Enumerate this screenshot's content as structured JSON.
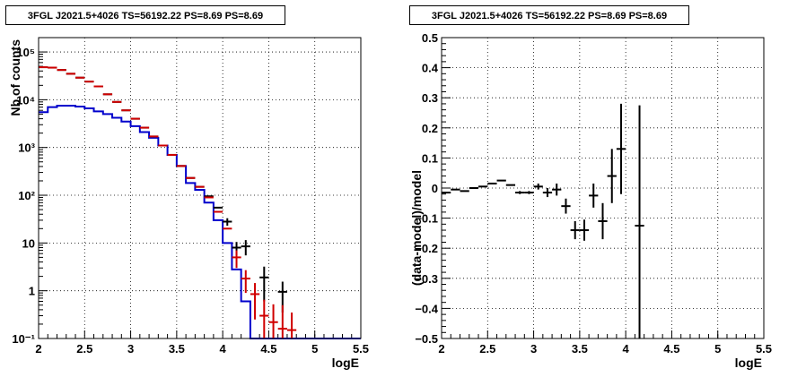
{
  "colors": {
    "data": "#000000",
    "model": "#d00000",
    "source": "#0000cc",
    "grid": "#000000"
  },
  "chart_data": [
    {
      "type": "line",
      "title": "3FGL J2021.5+4026 TS=56192.22 PS=8.69 PS=8.69",
      "xlabel": "logE",
      "ylabel": "Nb of counts",
      "yscale": "log",
      "xlim": [
        2,
        5.5
      ],
      "ylim": [
        0.1,
        200000
      ],
      "grid": true,
      "xticks": [
        "2",
        "2.5",
        "3",
        "3.5",
        "4",
        "4.5",
        "5",
        "5.5"
      ],
      "yticks": [
        {
          "v": 0.1,
          "label": "10⁻¹"
        },
        {
          "v": 1,
          "label": "1"
        },
        {
          "v": 10,
          "label": "10"
        },
        {
          "v": 100,
          "label": "10²"
        },
        {
          "v": 1000,
          "label": "10³"
        },
        {
          "v": 10000,
          "label": "10⁴"
        },
        {
          "v": 100000,
          "label": "10⁵"
        }
      ],
      "bin_edges": [
        2.0,
        2.1,
        2.2,
        2.3,
        2.4,
        2.5,
        2.6,
        2.7,
        2.8,
        2.9,
        3.0,
        3.1,
        3.2,
        3.3,
        3.4,
        3.5,
        3.6,
        3.7,
        3.8,
        3.9,
        4.0,
        4.1,
        4.2,
        4.3,
        4.4,
        4.5,
        4.6,
        4.7,
        4.8,
        4.9,
        5.0,
        5.1,
        5.2,
        5.3,
        5.4,
        5.5
      ],
      "series": [
        {
          "kind": "points",
          "color": "#000000",
          "x": [
            2.05,
            2.15,
            2.25,
            2.35,
            2.45,
            2.55,
            2.65,
            2.75,
            2.85,
            2.95,
            3.05,
            3.15,
            3.25,
            3.35,
            3.45,
            3.55,
            3.65,
            3.75,
            3.85,
            3.95,
            4.05,
            4.15,
            4.25,
            4.35,
            4.45,
            4.55,
            4.65
          ],
          "y": [
            48000,
            47000,
            42000,
            35000,
            29000,
            24000,
            19000,
            13000,
            9000,
            6000,
            4000,
            2600,
            1700,
            1100,
            700,
            410,
            230,
            150,
            95,
            55,
            28,
            8,
            8.5,
            0.1,
            1.9,
            0.1,
            0.95
          ],
          "err_low": [
            0,
            0,
            0,
            0,
            0,
            0,
            0,
            0,
            0,
            0,
            0,
            0,
            0,
            0,
            0,
            0,
            0,
            0,
            0,
            0,
            5,
            2.5,
            3,
            0,
            1.3,
            0,
            0.6
          ],
          "err_high": [
            0,
            0,
            0,
            0,
            0,
            0,
            0,
            0,
            0,
            0,
            0,
            0,
            0,
            0,
            0,
            0,
            0,
            0,
            0,
            0,
            5,
            2.5,
            3,
            0,
            1.3,
            0,
            0.6
          ]
        },
        {
          "kind": "points",
          "color": "#d00000",
          "x": [
            2.05,
            2.15,
            2.25,
            2.35,
            2.45,
            2.55,
            2.65,
            2.75,
            2.85,
            2.95,
            3.05,
            3.15,
            3.25,
            3.35,
            3.45,
            3.55,
            3.65,
            3.75,
            3.85,
            3.95,
            4.05,
            4.15,
            4.25,
            4.35,
            4.45,
            4.55,
            4.65,
            4.75
          ],
          "y": [
            48000,
            47000,
            42000,
            35000,
            29000,
            24000,
            19000,
            13000,
            9000,
            6000,
            4000,
            2600,
            1700,
            1100,
            700,
            410,
            230,
            150,
            90,
            45,
            20,
            5,
            1.8,
            0.85,
            0.3,
            0.22,
            0.16,
            0.15
          ],
          "err_low": [
            0,
            0,
            0,
            0,
            0,
            0,
            0,
            0,
            0,
            0,
            0,
            0,
            0,
            0,
            0,
            0,
            0,
            0,
            0,
            0,
            0,
            2,
            0.9,
            0.6,
            0.2,
            0.12,
            0.06,
            0.05
          ],
          "err_high": [
            0,
            0,
            0,
            0,
            0,
            0,
            0,
            0,
            0,
            0,
            0,
            0,
            0,
            0,
            0,
            0,
            0,
            0,
            0,
            0,
            0,
            2,
            0.9,
            0.6,
            0.35,
            0.3,
            0.34,
            0.2
          ]
        },
        {
          "kind": "step",
          "color": "#0000cc",
          "values": [
            5500,
            7000,
            7500,
            7500,
            7200,
            6600,
            5700,
            5000,
            4200,
            3500,
            2800,
            2100,
            1600,
            1100,
            700,
            410,
            180,
            130,
            70,
            30,
            10,
            2.8,
            0.6,
            0.1,
            0.1,
            0.1,
            0.1,
            0.1,
            0.1,
            0.1,
            0.1,
            0.1,
            0.1,
            0.1,
            0.1
          ]
        }
      ]
    },
    {
      "type": "scatter",
      "title": "3FGL J2021.5+4026 TS=56192.22 PS=8.69 PS=8.69",
      "xlabel": "logE",
      "ylabel": "(data-model)/model",
      "xlim": [
        2,
        5.5
      ],
      "ylim": [
        -0.5,
        0.5
      ],
      "grid": true,
      "xticks": [
        "2",
        "2.5",
        "3",
        "3.5",
        "4",
        "4.5",
        "5",
        "5.5"
      ],
      "yticks": [
        "−0.5",
        "−0.4",
        "−0.3",
        "−0.2",
        "−0.1",
        "0",
        "0.1",
        "0.2",
        "0.3",
        "0.4",
        "0.5"
      ],
      "series": [
        {
          "x": [
            2.05,
            2.15,
            2.25,
            2.35,
            2.45,
            2.55,
            2.65,
            2.75,
            2.85,
            2.95,
            3.05,
            3.15,
            3.25,
            3.35,
            3.45,
            3.55,
            3.65,
            3.75,
            3.85,
            3.95,
            4.15
          ],
          "y": [
            -0.015,
            -0.005,
            -0.01,
            0.0,
            0.005,
            0.015,
            0.025,
            0.01,
            -0.015,
            -0.015,
            0.005,
            -0.015,
            -0.005,
            -0.06,
            -0.14,
            -0.14,
            -0.025,
            -0.11,
            0.04,
            0.13,
            -0.125
          ],
          "err_low": [
            0,
            0,
            0,
            0,
            0,
            0,
            0,
            0,
            0.005,
            0.005,
            0.01,
            0.015,
            0.02,
            0.025,
            0.03,
            0.035,
            0.04,
            0.06,
            0.09,
            0.15,
            0.4
          ],
          "err_high": [
            0,
            0,
            0,
            0,
            0,
            0,
            0,
            0,
            0.005,
            0.005,
            0.01,
            0.015,
            0.02,
            0.025,
            0.03,
            0.035,
            0.04,
            0.06,
            0.09,
            0.15,
            0.4
          ]
        }
      ]
    }
  ]
}
